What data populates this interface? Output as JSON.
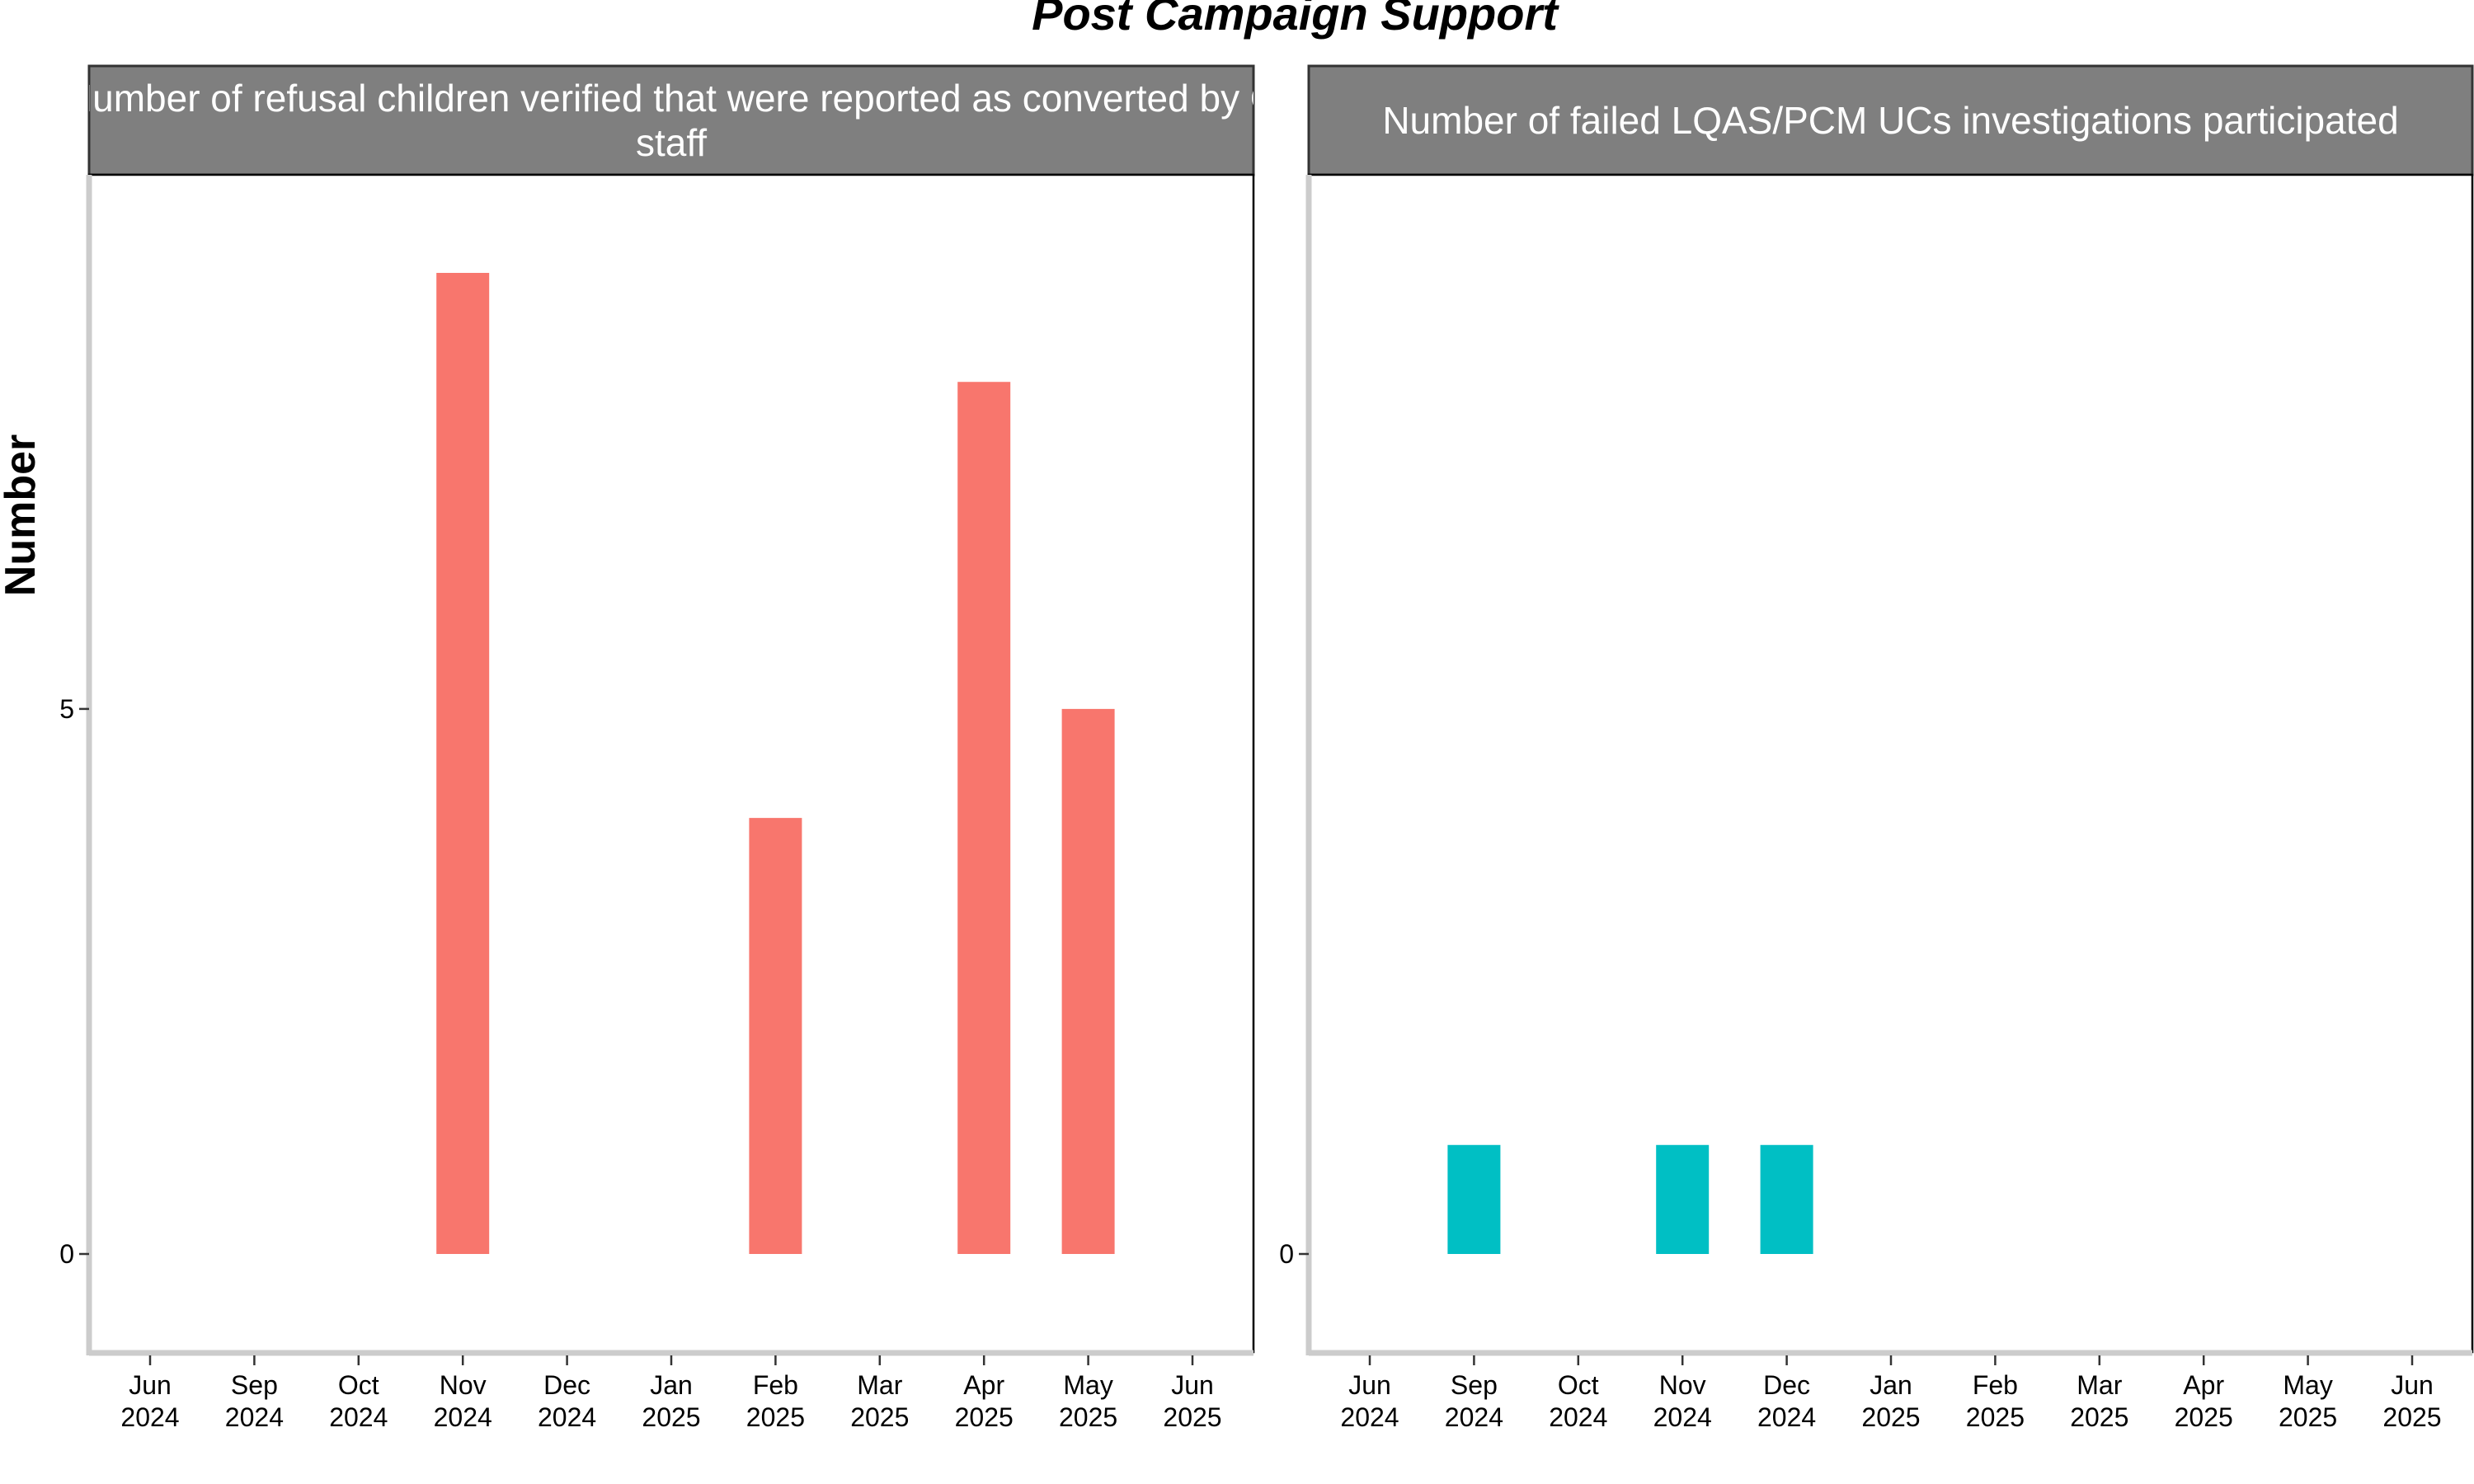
{
  "title": "Post Campaign Support",
  "ylabel": "Number",
  "chart_data": [
    {
      "type": "bar",
      "facet_title_lines": [
        "Number of refusal children verified that were reported as converted by C",
        "staff"
      ],
      "color": "#F8766D",
      "ylim": [
        -0.9,
        9.9
      ],
      "yticks": [
        0,
        5
      ],
      "categories": [
        {
          "month": "Jun",
          "year": "2024"
        },
        {
          "month": "Sep",
          "year": "2024"
        },
        {
          "month": "Oct",
          "year": "2024"
        },
        {
          "month": "Nov",
          "year": "2024"
        },
        {
          "month": "Dec",
          "year": "2024"
        },
        {
          "month": "Jan",
          "year": "2025"
        },
        {
          "month": "Feb",
          "year": "2025"
        },
        {
          "month": "Mar",
          "year": "2025"
        },
        {
          "month": "Apr",
          "year": "2025"
        },
        {
          "month": "May",
          "year": "2025"
        },
        {
          "month": "Jun",
          "year": "2025"
        }
      ],
      "values": [
        0,
        0,
        0,
        9,
        0,
        0,
        4,
        0,
        8,
        5,
        0
      ]
    },
    {
      "type": "bar",
      "facet_title_lines": [
        "Number of failed LQAS/PCM UCs investigations participated"
      ],
      "color": "#00BFC4",
      "ylim": [
        -0.9,
        9.9
      ],
      "yticks": [
        0
      ],
      "categories": [
        {
          "month": "Jun",
          "year": "2024"
        },
        {
          "month": "Sep",
          "year": "2024"
        },
        {
          "month": "Oct",
          "year": "2024"
        },
        {
          "month": "Nov",
          "year": "2024"
        },
        {
          "month": "Dec",
          "year": "2024"
        },
        {
          "month": "Jan",
          "year": "2025"
        },
        {
          "month": "Feb",
          "year": "2025"
        },
        {
          "month": "Mar",
          "year": "2025"
        },
        {
          "month": "Apr",
          "year": "2025"
        },
        {
          "month": "May",
          "year": "2025"
        },
        {
          "month": "Jun",
          "year": "2025"
        }
      ],
      "values": [
        0,
        1,
        0,
        1,
        1,
        0,
        0,
        0,
        0,
        0,
        0
      ]
    }
  ]
}
